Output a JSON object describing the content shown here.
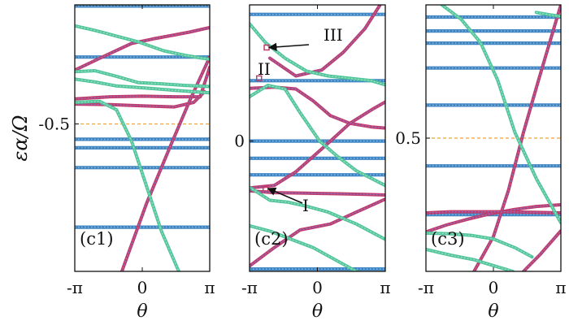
{
  "chart_data": {
    "type": "line",
    "ylabel": "εα/Ω",
    "colors": {
      "flat": "#3f86c4",
      "rising": "#c03a6b",
      "falling": "#4fc49a",
      "reference": "#f0a030",
      "marker_edge": "#c03a6b"
    },
    "panels": [
      {
        "label": "(c1)",
        "xlim": [
          -3.14159,
          3.14159
        ],
        "ylim": [
          -0.76,
          -0.29
        ],
        "xticks": [
          {
            "value": -3.14159,
            "label": "-π"
          },
          {
            "value": 0,
            "label": "0"
          },
          {
            "value": 3.14159,
            "label": "π"
          }
        ],
        "xlabel": "θ",
        "ytick": {
          "value": -0.5,
          "label": "-0.5"
        },
        "ref_line": -0.5,
        "series": [
          {
            "kind": "flat",
            "x": [
              -3.14159,
              3.14159
            ],
            "y": [
              -0.292,
              -0.292
            ]
          },
          {
            "kind": "flat",
            "x": [
              -3.14159,
              3.14159
            ],
            "y": [
              -0.382,
              -0.382
            ]
          },
          {
            "kind": "flat",
            "x": [
              -3.14159,
              3.14159
            ],
            "y": [
              -0.527,
              -0.527
            ]
          },
          {
            "kind": "flat",
            "x": [
              -3.14159,
              3.14159
            ],
            "y": [
              -0.542,
              -0.542
            ]
          },
          {
            "kind": "flat",
            "x": [
              -3.14159,
              3.14159
            ],
            "y": [
              -0.577,
              -0.577
            ]
          },
          {
            "kind": "flat",
            "x": [
              -3.14159,
              3.14159
            ],
            "y": [
              -0.682,
              -0.682
            ]
          },
          {
            "kind": "rising",
            "x": [
              -3.14,
              -1.8,
              -0.5,
              0.5,
              1.5,
              2.2,
              3.14
            ],
            "y": [
              -0.405,
              -0.381,
              -0.358,
              -0.35,
              -0.343,
              -0.338,
              -0.33
            ]
          },
          {
            "kind": "rising",
            "x": [
              -3.14,
              -1.5,
              0,
              1.5,
              2.7,
              3.14
            ],
            "y": [
              -0.456,
              -0.452,
              -0.451,
              -0.452,
              -0.452,
              -0.4
            ]
          },
          {
            "kind": "rising",
            "x": [
              -3.14,
              -1.5,
              0,
              1.5,
              2.4,
              2.9
            ],
            "y": [
              -0.465,
              -0.466,
              -0.468,
              -0.47,
              -0.462,
              -0.443
            ]
          },
          {
            "kind": "rising",
            "x": [
              -0.95,
              0.2,
              1.3,
              2.2,
              3.14
            ],
            "y": [
              -0.76,
              -0.64,
              -0.54,
              -0.46,
              -0.382
            ]
          },
          {
            "kind": "falling",
            "x": [
              -3.14,
              -2.2,
              -1.2,
              -0.2,
              1.0,
              2.0,
              2.8,
              3.14
            ],
            "y": [
              -0.327,
              -0.335,
              -0.345,
              -0.355,
              -0.371,
              -0.379,
              -0.384,
              -0.386
            ]
          },
          {
            "kind": "falling",
            "x": [
              -3.14,
              -2.2,
              -1.2,
              -0.2,
              0.8,
              2.0,
              3.14
            ],
            "y": [
              -0.408,
              -0.406,
              -0.416,
              -0.427,
              -0.429,
              -0.432,
              -0.434
            ]
          },
          {
            "kind": "falling",
            "x": [
              -3.14,
              -2.2,
              -1.2,
              -0.4,
              0.6,
              1.6,
              3.14
            ],
            "y": [
              -0.421,
              -0.426,
              -0.433,
              -0.435,
              -0.438,
              -0.441,
              -0.445
            ]
          },
          {
            "kind": "falling",
            "x": [
              -3.14,
              -2.0,
              -1.2,
              -0.5,
              0.2,
              0.9,
              1.7
            ],
            "y": [
              -0.462,
              -0.46,
              -0.475,
              -0.53,
              -0.61,
              -0.69,
              -0.76
            ]
          }
        ]
      },
      {
        "label": "(c2)",
        "xlim": [
          -3.14159,
          3.14159
        ],
        "ylim": [
          -0.22,
          0.23
        ],
        "xticks": [
          {
            "value": -3.14159,
            "label": "-π"
          },
          {
            "value": 0,
            "label": "0"
          },
          {
            "value": 3.14159,
            "label": "π"
          }
        ],
        "xlabel": "θ",
        "ytick": {
          "value": 0,
          "label": "0"
        },
        "ref_line": 0,
        "series": [
          {
            "kind": "flat",
            "x": [
              -3.14159,
              3.14159
            ],
            "y": [
              0.214,
              0.214
            ]
          },
          {
            "kind": "flat",
            "x": [
              -3.14159,
              3.14159
            ],
            "y": [
              0.102,
              0.102
            ]
          },
          {
            "kind": "flat",
            "x": [
              -3.14159,
              3.14159
            ],
            "y": [
              0.0,
              0.0
            ]
          },
          {
            "kind": "flat",
            "x": [
              -3.14159,
              3.14159
            ],
            "y": [
              -0.029,
              -0.029
            ]
          },
          {
            "kind": "flat",
            "x": [
              -3.14159,
              3.14159
            ],
            "y": [
              -0.057,
              -0.057
            ]
          },
          {
            "kind": "flat",
            "x": [
              -3.14159,
              3.14159
            ],
            "y": [
              -0.216,
              -0.216
            ]
          },
          {
            "kind": "rising",
            "x": [
              -2.2,
              -1.0,
              0.2,
              1.2,
              2.2,
              2.9
            ],
            "y": [
              0.14,
              0.11,
              0.12,
              0.15,
              0.19,
              0.23
            ]
          },
          {
            "kind": "rising",
            "x": [
              -3.14,
              -2.0,
              -1.0,
              -0.2,
              0.6,
              1.5,
              2.5,
              3.14
            ],
            "y": [
              0.089,
              0.091,
              0.088,
              0.068,
              0.043,
              0.03,
              0.024,
              0.022
            ]
          },
          {
            "kind": "rising",
            "x": [
              -3.14,
              -2.0,
              -1.0,
              0.3,
              1.5,
              2.6,
              3.14
            ],
            "y": [
              -0.079,
              -0.075,
              -0.052,
              -0.01,
              0.03,
              0.055,
              0.066
            ]
          },
          {
            "kind": "rising",
            "x": [
              -3.14,
              -2.0,
              -0.5,
              1.0,
              2.2,
              3.14
            ],
            "y": [
              -0.084,
              -0.087,
              -0.088,
              -0.089,
              -0.09,
              -0.091
            ]
          },
          {
            "kind": "rising",
            "x": [
              -3.14,
              -2.0,
              -0.8,
              0.6,
              1.8,
              3.14
            ],
            "y": [
              -0.211,
              -0.18,
              -0.15,
              -0.14,
              -0.12,
              -0.098
            ]
          },
          {
            "kind": "falling",
            "x": [
              -3.14,
              -2.4,
              -1.5,
              -0.5,
              0.5,
              1.5,
              2.5,
              3.14
            ],
            "y": [
              0.198,
              0.166,
              0.14,
              0.118,
              0.11,
              0.106,
              0.102,
              0.095
            ]
          },
          {
            "kind": "falling",
            "x": [
              -3.14,
              -2.3,
              -1.5,
              -0.8,
              0.1,
              0.9,
              1.8,
              3.14
            ],
            "y": [
              0.075,
              0.094,
              0.088,
              0.048,
              0.0,
              -0.025,
              -0.05,
              -0.075
            ]
          },
          {
            "kind": "falling",
            "x": [
              -3.14,
              -2.2,
              -1.4,
              -0.5,
              0.5,
              1.8,
              3.14
            ],
            "y": [
              -0.078,
              -0.1,
              -0.103,
              -0.11,
              -0.12,
              -0.14,
              -0.166
            ]
          },
          {
            "kind": "falling",
            "x": [
              -3.14,
              -2.2,
              -1.2,
              -0.2,
              0.8,
              1.8,
              2.4
            ],
            "y": [
              -0.143,
              -0.152,
              -0.166,
              -0.18,
              -0.2,
              -0.22,
              -0.23
            ]
          }
        ],
        "markers": [
          {
            "label": "I",
            "x": -2.4,
            "y": -0.08
          },
          {
            "label": "II",
            "x": -2.7,
            "y": 0.106
          },
          {
            "label": "III",
            "x": -2.35,
            "y": 0.158
          }
        ]
      },
      {
        "label": "(c3)",
        "xlim": [
          -3.14159,
          3.14159
        ],
        "ylim": [
          0.27,
          0.73
        ],
        "xticks": [
          {
            "value": -3.14159,
            "label": "-π"
          },
          {
            "value": 0,
            "label": "0"
          },
          {
            "value": 3.14159,
            "label": "π"
          }
        ],
        "xlabel": "θ",
        "ytick": {
          "value": 0.5,
          "label": "0.5"
        },
        "ref_line": 0.5,
        "series": [
          {
            "kind": "flat",
            "x": [
              -3.14159,
              3.14159
            ],
            "y": [
              0.709,
              0.709
            ]
          },
          {
            "kind": "flat",
            "x": [
              -3.14159,
              3.14159
            ],
            "y": [
              0.685,
              0.685
            ]
          },
          {
            "kind": "flat",
            "x": [
              -3.14159,
              3.14159
            ],
            "y": [
              0.664,
              0.664
            ]
          },
          {
            "kind": "flat",
            "x": [
              -3.14159,
              3.14159
            ],
            "y": [
              0.621,
              0.621
            ]
          },
          {
            "kind": "flat",
            "x": [
              -3.14159,
              3.14159
            ],
            "y": [
              0.557,
              0.557
            ]
          },
          {
            "kind": "flat",
            "x": [
              -3.14159,
              3.14159
            ],
            "y": [
              0.452,
              0.452
            ]
          },
          {
            "kind": "flat",
            "x": [
              -3.14159,
              3.14159
            ],
            "y": [
              0.368,
              0.368
            ]
          },
          {
            "kind": "rising",
            "x": [
              -3.14,
              -2.2,
              -1.2,
              -0.2,
              1.0,
              2.0,
              3.14
            ],
            "y": [
              0.338,
              0.35,
              0.36,
              0.369,
              0.377,
              0.382,
              0.385
            ]
          },
          {
            "kind": "rising",
            "x": [
              -3.14,
              -2.0,
              -0.8,
              0.5,
              1.8,
              3.14
            ],
            "y": [
              0.371,
              0.373,
              0.373,
              0.373,
              0.372,
              0.371
            ]
          },
          {
            "kind": "rising",
            "x": [
              -0.9,
              0.0,
              0.7,
              1.4,
              2.1,
              2.9,
              3.14
            ],
            "y": [
              0.27,
              0.33,
              0.41,
              0.51,
              0.6,
              0.7,
              0.73
            ]
          },
          {
            "kind": "rising",
            "x": [
              1.4,
              2.2,
              3.14
            ],
            "y": [
              0.27,
              0.3,
              0.34
            ]
          },
          {
            "kind": "falling",
            "x": [
              -2.4,
              -1.5,
              -0.6,
              0.2,
              1.0,
              2.0,
              3.14
            ],
            "y": [
              0.73,
              0.705,
              0.665,
              0.6,
              0.51,
              0.43,
              0.354
            ]
          },
          {
            "kind": "falling",
            "x": [
              -3.14,
              -2.0,
              -1.0,
              0.0,
              1.0,
              1.8
            ],
            "y": [
              0.336,
              0.335,
              0.332,
              0.326,
              0.311,
              0.295
            ]
          },
          {
            "kind": "falling",
            "x": [
              -3.14,
              -2.0,
              -0.9,
              0.0,
              0.9
            ],
            "y": [
              0.308,
              0.298,
              0.29,
              0.28,
              0.27
            ]
          },
          {
            "kind": "falling",
            "x": [
              2.0,
              2.6,
              3.14
            ],
            "y": [
              0.717,
              0.713,
              0.71
            ]
          }
        ]
      }
    ]
  }
}
